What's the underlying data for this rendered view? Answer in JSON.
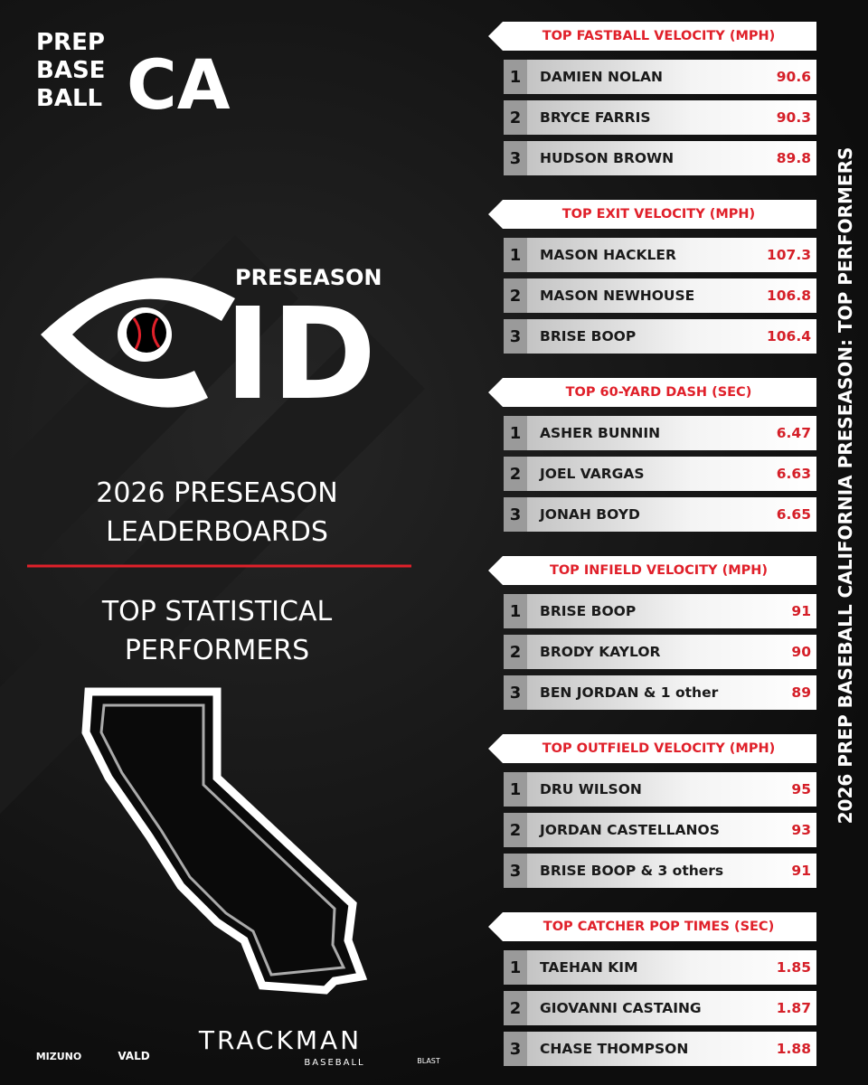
{
  "logo": {
    "line1": "PREP",
    "line2": "BASE",
    "line3": "BALL",
    "state": "CA"
  },
  "event_logo": {
    "top": "PRESEASON",
    "main": "ID"
  },
  "heading": {
    "line1": "2026 PRESEASON",
    "line2": "LEADERBOARDS"
  },
  "subheading": {
    "line1": "TOP STATISTICAL",
    "line2": "PERFORMERS"
  },
  "sponsors": [
    "MIZUNO",
    "VALD",
    "TRACKMAN",
    "BASEBALL",
    "BLAST"
  ],
  "side_title": "2026 PREP BASEBALL CALIFORNIA PRESEASON: TOP PERFORMERS",
  "boards": [
    {
      "title": "TOP FASTBALL VELOCITY (MPH)",
      "rows": [
        {
          "rank": 1,
          "name": "DAMIEN NOLAN",
          "value": 90.6
        },
        {
          "rank": 2,
          "name": "BRYCE FARRIS",
          "value": 90.3
        },
        {
          "rank": 3,
          "name": "HUDSON BROWN",
          "value": 89.8
        }
      ]
    },
    {
      "title": "TOP EXIT VELOCITY (MPH)",
      "rows": [
        {
          "rank": 1,
          "name": "MASON HACKLER",
          "value": 107.3
        },
        {
          "rank": 2,
          "name": "MASON NEWHOUSE",
          "value": 106.8
        },
        {
          "rank": 3,
          "name": "BRISE BOOP",
          "value": 106.4
        }
      ]
    },
    {
      "title": "TOP 60-YARD DASH (SEC)",
      "rows": [
        {
          "rank": 1,
          "name": "ASHER BUNNIN",
          "value": 6.47
        },
        {
          "rank": 2,
          "name": "JOEL VARGAS",
          "value": 6.63
        },
        {
          "rank": 3,
          "name": "JONAH BOYD",
          "value": 6.65
        }
      ]
    },
    {
      "title": "TOP INFIELD VELOCITY (MPH)",
      "rows": [
        {
          "rank": 1,
          "name": "BRISE BOOP",
          "value": 91
        },
        {
          "rank": 2,
          "name": "BRODY KAYLOR",
          "value": 90
        },
        {
          "rank": 3,
          "name": "BEN JORDAN & 1 other",
          "value": 89
        }
      ]
    },
    {
      "title": "TOP OUTFIELD VELOCITY (MPH)",
      "rows": [
        {
          "rank": 1,
          "name": "DRU WILSON",
          "value": 95
        },
        {
          "rank": 2,
          "name": "JORDAN CASTELLANOS",
          "value": 93
        },
        {
          "rank": 3,
          "name": "BRISE BOOP & 3 others",
          "value": 91
        }
      ]
    },
    {
      "title": "TOP CATCHER POP TIMES (SEC)",
      "rows": [
        {
          "rank": 1,
          "name": "TAEHAN KIM",
          "value": 1.85
        },
        {
          "rank": 2,
          "name": "GIOVANNI CASTAING",
          "value": 1.87
        },
        {
          "rank": 3,
          "name": "CHASE THOMPSON",
          "value": 1.88
        }
      ]
    }
  ]
}
